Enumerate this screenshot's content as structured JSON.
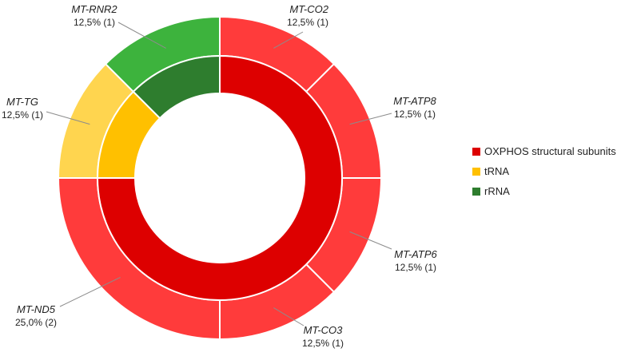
{
  "chart_data": {
    "type": "donut",
    "rings": {
      "outer": {
        "slices": [
          {
            "name": "MT-CO2",
            "value": 12.5,
            "count": 1,
            "label": "12,5% (1)",
            "category": "OXPHOS structural subunits",
            "color": "#ff3b3b"
          },
          {
            "name": "MT-ATP8",
            "value": 12.5,
            "count": 1,
            "label": "12,5% (1)",
            "category": "OXPHOS structural subunits",
            "color": "#ff3b3b"
          },
          {
            "name": "MT-ATP6",
            "value": 12.5,
            "count": 1,
            "label": "12,5% (1)",
            "category": "OXPHOS structural subunits",
            "color": "#ff3b3b"
          },
          {
            "name": "MT-CO3",
            "value": 12.5,
            "count": 1,
            "label": "12,5% (1)",
            "category": "OXPHOS structural subunits",
            "color": "#ff3b3b"
          },
          {
            "name": "MT-ND5",
            "value": 25.0,
            "count": 2,
            "label": "25,0% (2)",
            "category": "OXPHOS structural subunits",
            "color": "#ff3b3b"
          },
          {
            "name": "MT-TG",
            "value": 12.5,
            "count": 1,
            "label": "12,5% (1)",
            "category": "tRNA",
            "color": "#ffd54f"
          },
          {
            "name": "MT-RNR2",
            "value": 12.5,
            "count": 1,
            "label": "12,5% (1)",
            "category": "rRNA",
            "color": "#3db33d"
          }
        ]
      },
      "inner": {
        "slices": [
          {
            "name": "OXPHOS structural subunits",
            "value": 75.0,
            "color": "#dd0000"
          },
          {
            "name": "tRNA",
            "value": 12.5,
            "color": "#ffc000"
          },
          {
            "name": "rRNA",
            "value": 12.5,
            "color": "#2e7d2e"
          }
        ]
      }
    },
    "legend": {
      "position": "right",
      "items": [
        {
          "label": "OXPHOS structural subunits",
          "color": "#dd0000"
        },
        {
          "label": "tRNA",
          "color": "#ffc000"
        },
        {
          "label": "rRNA",
          "color": "#2e7d2e"
        }
      ]
    }
  }
}
